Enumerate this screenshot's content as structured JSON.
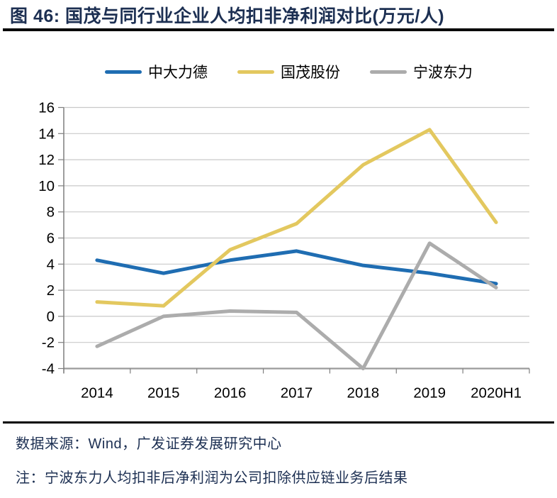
{
  "page": {
    "background": "#ffffff"
  },
  "header": {
    "title": "图 46:  国茂与同行业企业人均扣非净利润对比(万元/人)",
    "title_color": "#1c2f52",
    "rule_color": "#000000"
  },
  "footer": {
    "source": "数据来源：Wind，广发证券发展研究中心",
    "note": "注：宁波东力人均扣非后净利润为公司扣除供应链业务后结果",
    "text_color": "#1c2f52",
    "rule_color": "#000000"
  },
  "chart_data": {
    "type": "line",
    "title": "国茂与同行业企业人均扣非净利润对比(万元/人)",
    "categories": [
      "2014",
      "2015",
      "2016",
      "2017",
      "2018",
      "2019",
      "2020H1"
    ],
    "series": [
      {
        "name": "中大力德",
        "color": "#1f6db2",
        "values": [
          4.3,
          3.3,
          4.3,
          5.0,
          3.9,
          3.3,
          2.5
        ]
      },
      {
        "name": "国茂股份",
        "color": "#e3c85f",
        "values": [
          1.1,
          0.8,
          5.1,
          7.1,
          11.6,
          14.3,
          7.2
        ]
      },
      {
        "name": "宁波东力",
        "color": "#acacac",
        "values": [
          -2.3,
          0.0,
          0.4,
          0.3,
          -4.0,
          5.6,
          2.2
        ]
      }
    ],
    "xlabel": "",
    "ylabel": "",
    "ylim": [
      -4,
      16
    ],
    "ytick_step": 2,
    "yticks": [
      16,
      14,
      12,
      10,
      8,
      6,
      4,
      2,
      0,
      -2,
      -4
    ],
    "grid": true,
    "legend_position": "top",
    "line_width": 5,
    "axis_color": "#7f7f7f",
    "x_axis_color": "#9a9a9a",
    "gridline_color": "#c9c9c9",
    "tick_label_color": "#000000"
  }
}
